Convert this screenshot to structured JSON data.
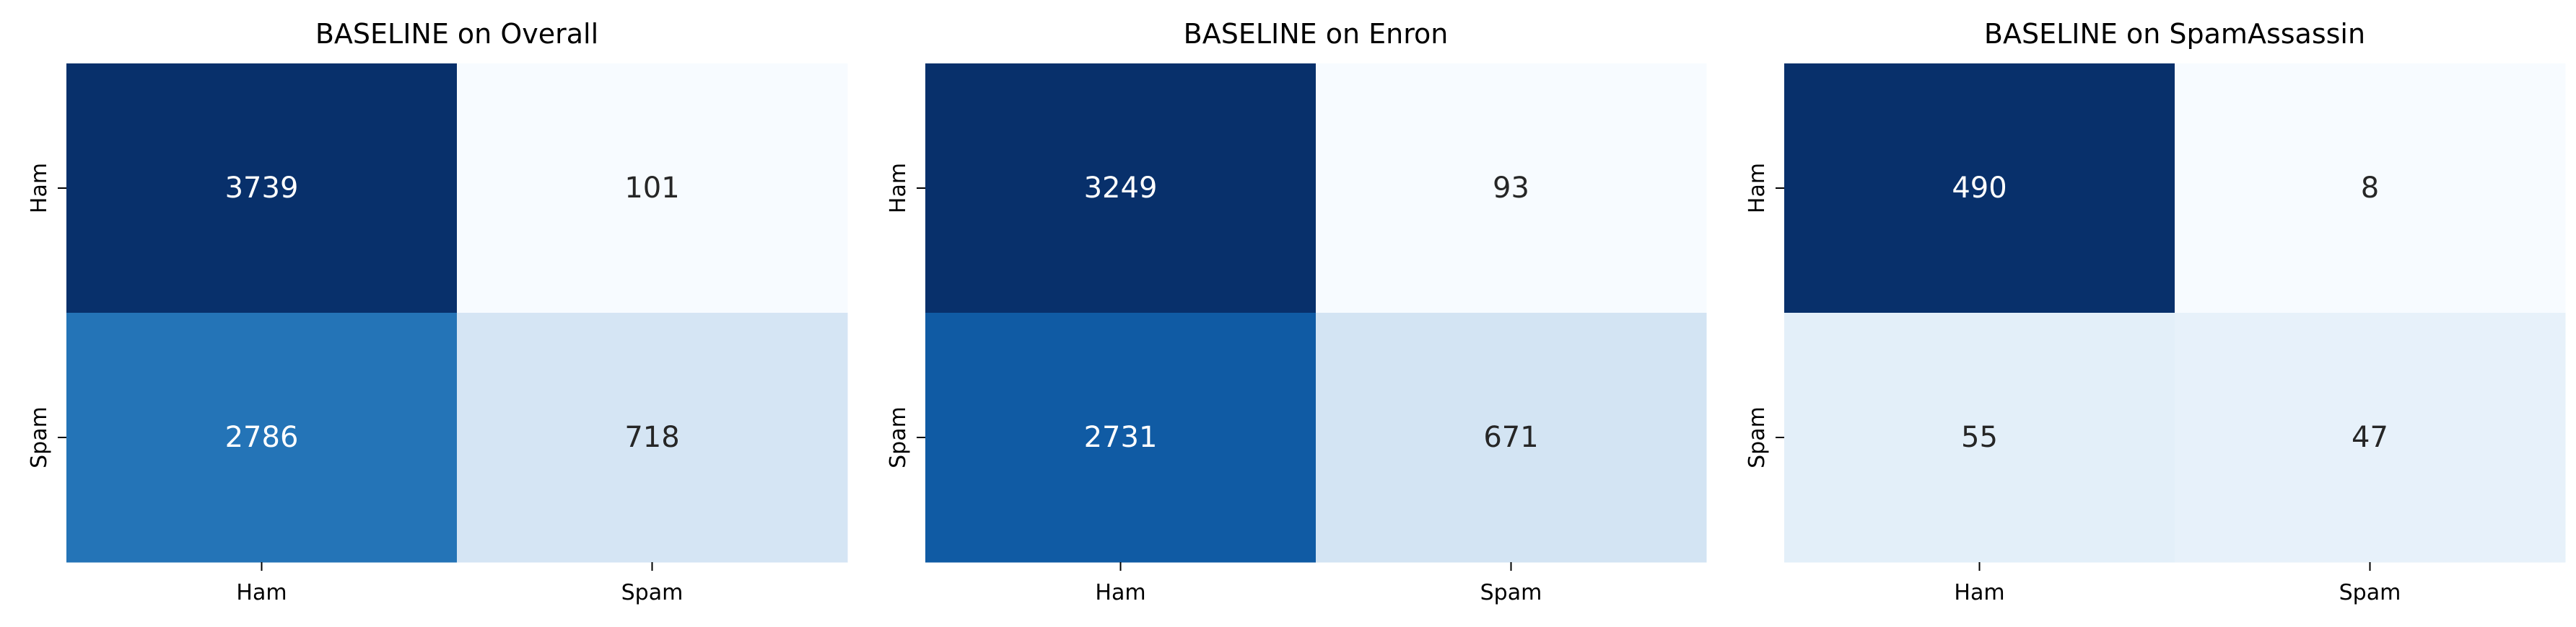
{
  "chart_data": [
    {
      "type": "heatmap",
      "title": "BASELINE on Overall",
      "x_categories": [
        "Ham",
        "Spam"
      ],
      "y_categories": [
        "Ham",
        "Spam"
      ],
      "values": [
        [
          3739,
          101
        ],
        [
          2786,
          718
        ]
      ],
      "colormap": "Blues",
      "colorbar": false
    },
    {
      "type": "heatmap",
      "title": "BASELINE on Enron",
      "x_categories": [
        "Ham",
        "Spam"
      ],
      "y_categories": [
        "Ham",
        "Spam"
      ],
      "values": [
        [
          3249,
          93
        ],
        [
          2731,
          671
        ]
      ],
      "colormap": "Blues",
      "colorbar": false
    },
    {
      "type": "heatmap",
      "title": "BASELINE on SpamAssassin",
      "x_categories": [
        "Ham",
        "Spam"
      ],
      "y_categories": [
        "Ham",
        "Spam"
      ],
      "values": [
        [
          490,
          8
        ],
        [
          55,
          47
        ]
      ],
      "colormap": "Blues",
      "colorbar": false
    }
  ]
}
